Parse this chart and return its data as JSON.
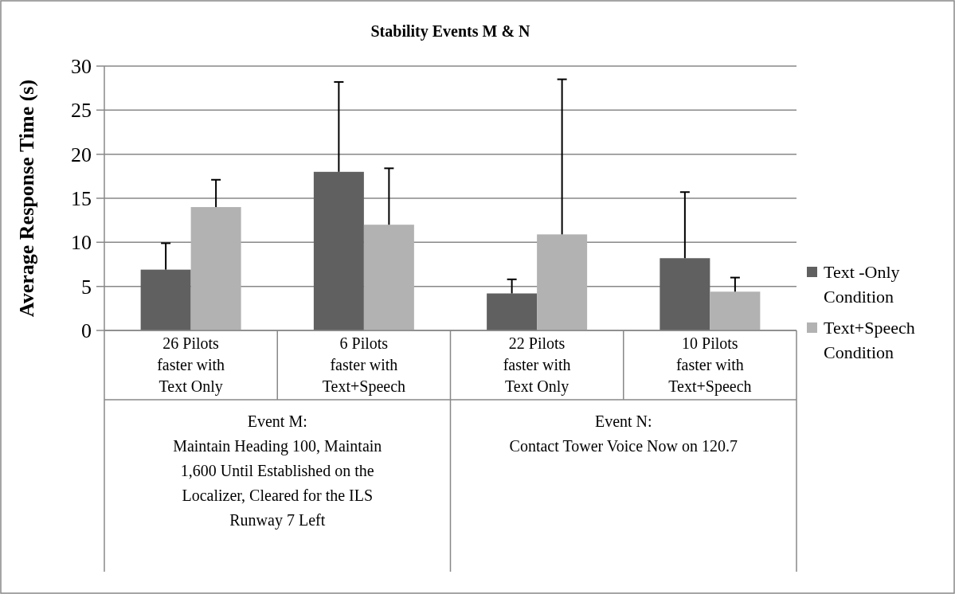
{
  "chart_data": {
    "type": "bar",
    "title": "Stability  Events M & N",
    "ylabel": "Average  Response  Time  (s)",
    "categories": [
      "26 Pilots\nfaster with\nText Only",
      "6 Pilots\nfaster with\nText+Speech",
      "22 Pilots\nfaster with\nText Only",
      "10 Pilots\nfaster with\nText+Speech"
    ],
    "series": [
      {
        "name": "Text -Only\nCondition",
        "color": "#606060",
        "values": [
          6.9,
          18,
          4.2,
          8.2
        ],
        "errors": [
          3,
          10.2,
          1.6,
          7.5
        ]
      },
      {
        "name": "Text+Speech\nCondition",
        "color": "#b2b2b2",
        "values": [
          14,
          12,
          10.9,
          4.4
        ],
        "errors": [
          3.1,
          6.4,
          17.6,
          1.6
        ]
      }
    ],
    "annotations": [
      "Event M:\nMaintain Heading 100, Maintain\n1,600 Until Established on the\nLocalizer, Cleared for the ILS\nRunway 7 Left",
      "Event N:\nContact Tower Voice Now on 120.7"
    ],
    "ylim": [
      0,
      30
    ],
    "yticks": [
      0,
      5,
      10,
      15,
      20,
      25,
      30
    ],
    "grid": "y",
    "legend": "right"
  }
}
